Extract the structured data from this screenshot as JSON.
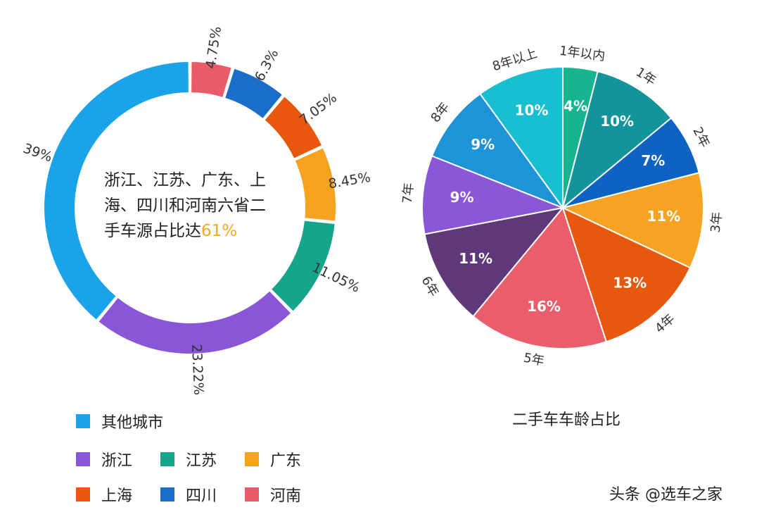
{
  "chart_data": [
    {
      "type": "pie",
      "variant": "donut",
      "categories": [
        "河南",
        "四川",
        "上海",
        "广东",
        "江苏",
        "浙江",
        "其他城市"
      ],
      "values": [
        4.75,
        6.3,
        7.05,
        8.45,
        11.05,
        23.22,
        39
      ],
      "value_labels": [
        "4.75%",
        "6.3%",
        "7.05%",
        "8.45%",
        "11.05%",
        "23.22%",
        "39%"
      ],
      "colors": [
        "#ea5b6a",
        "#1a6ec8",
        "#e9570e",
        "#f5a21f",
        "#15a58a",
        "#8a55d6",
        "#1aa3e8"
      ],
      "center_text": {
        "line1": "浙江、江苏、广东、上",
        "line2": "海、四川和河南六省二",
        "line3_prefix": "手车源占比达",
        "highlight": "61%"
      },
      "highlight_color": "#f5a623",
      "legend": [
        {
          "label": "其他城市",
          "color": "#1aa3e8"
        },
        {
          "label": "浙江",
          "color": "#8a55d6"
        },
        {
          "label": "江苏",
          "color": "#15a58a"
        },
        {
          "label": "广东",
          "color": "#f5a21f"
        },
        {
          "label": "上海",
          "color": "#e9570e"
        },
        {
          "label": "四川",
          "color": "#1a6ec8"
        },
        {
          "label": "河南",
          "color": "#ea5b6a"
        }
      ]
    },
    {
      "type": "pie",
      "title": "二手车车龄占比",
      "categories": [
        "1年以内",
        "1年",
        "2年",
        "3年",
        "4年",
        "5年",
        "6年",
        "7年",
        "8年",
        "8年以上"
      ],
      "values": [
        4,
        10,
        7,
        11,
        13,
        16,
        11,
        9,
        9,
        10
      ],
      "value_labels": [
        "4%",
        "10%",
        "7%",
        "11%",
        "13%",
        "16%",
        "11%",
        "9%",
        "9%",
        "10%"
      ],
      "colors": [
        "#17b490",
        "#12949a",
        "#0e63c2",
        "#f6a323",
        "#e5580e",
        "#ea5d6a",
        "#5e3878",
        "#8c57d6",
        "#1e93d6",
        "#17bfd0"
      ]
    }
  ],
  "watermark": "头条 @选车之家"
}
